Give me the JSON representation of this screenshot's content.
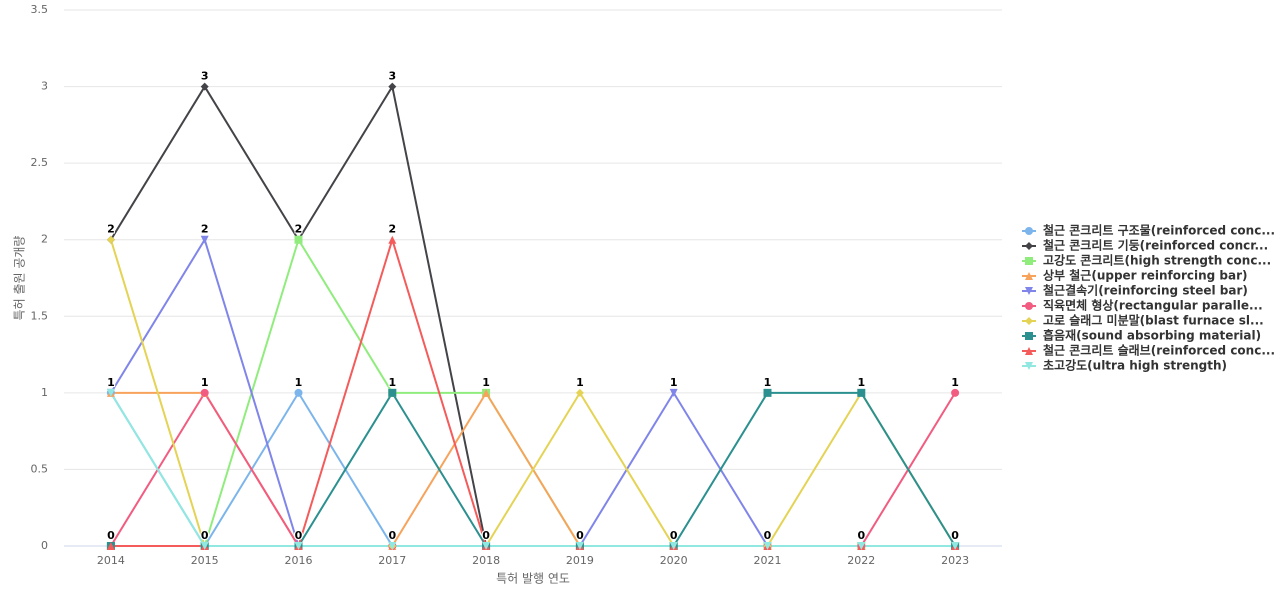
{
  "chart_data": {
    "type": "line",
    "x_label": "특허 발행 연도",
    "y_label": "특허 출원 공개량",
    "categories": [
      "2014",
      "2015",
      "2016",
      "2017",
      "2018",
      "2019",
      "2020",
      "2021",
      "2022",
      "2023"
    ],
    "ylim": [
      0,
      3.5
    ],
    "yticks": [
      0,
      0.5,
      1,
      1.5,
      2,
      2.5,
      3,
      3.5
    ],
    "grid": true,
    "legend": "right",
    "series": [
      {
        "name": "철근 콘크리트 구조물(reinforced conc...",
        "color": "#7cb5ec",
        "values": [
          1,
          0,
          1,
          0,
          0,
          0,
          0,
          0,
          0,
          0
        ]
      },
      {
        "name": "철근 콘크리트 기둥(reinforced concr...",
        "color": "#434348",
        "values": [
          2,
          3,
          2,
          3,
          0,
          0,
          0,
          0,
          0,
          0
        ]
      },
      {
        "name": "고강도 콘크리트(high strength conc...",
        "color": "#90ed7d",
        "values": [
          0,
          0,
          2,
          1,
          1,
          0,
          0,
          0,
          0,
          0
        ]
      },
      {
        "name": "상부 철근(upper reinforcing bar)",
        "color": "#f7a35c",
        "values": [
          1,
          1,
          0,
          0,
          1,
          0,
          0,
          0,
          0,
          0
        ]
      },
      {
        "name": "철근결속기(reinforcing steel bar)",
        "color": "#8085e9",
        "values": [
          1,
          2,
          0,
          0,
          0,
          0,
          1,
          0,
          0,
          0
        ]
      },
      {
        "name": "직육면체 형상(rectangular paralle...",
        "color": "#f15c80",
        "values": [
          0,
          1,
          0,
          0,
          0,
          0,
          0,
          0,
          0,
          1
        ]
      },
      {
        "name": "고로 슬래그 미분말(blast furnace sl...",
        "color": "#e4d354",
        "values": [
          2,
          0,
          0,
          0,
          0,
          1,
          0,
          0,
          1,
          0
        ]
      },
      {
        "name": "흡음재(sound absorbing material)",
        "color": "#2b908f",
        "values": [
          0,
          0,
          0,
          1,
          0,
          0,
          0,
          1,
          1,
          0
        ]
      },
      {
        "name": "철근 콘크리트 슬래브(reinforced conc...",
        "color": "#f45b5b",
        "values": [
          0,
          0,
          0,
          2,
          0,
          0,
          0,
          0,
          0,
          0
        ]
      },
      {
        "name": "초고강도(ultra high strength)",
        "color": "#91e8e1",
        "values": [
          1,
          0,
          0,
          0,
          0,
          0,
          0,
          0,
          0,
          0
        ]
      }
    ]
  }
}
